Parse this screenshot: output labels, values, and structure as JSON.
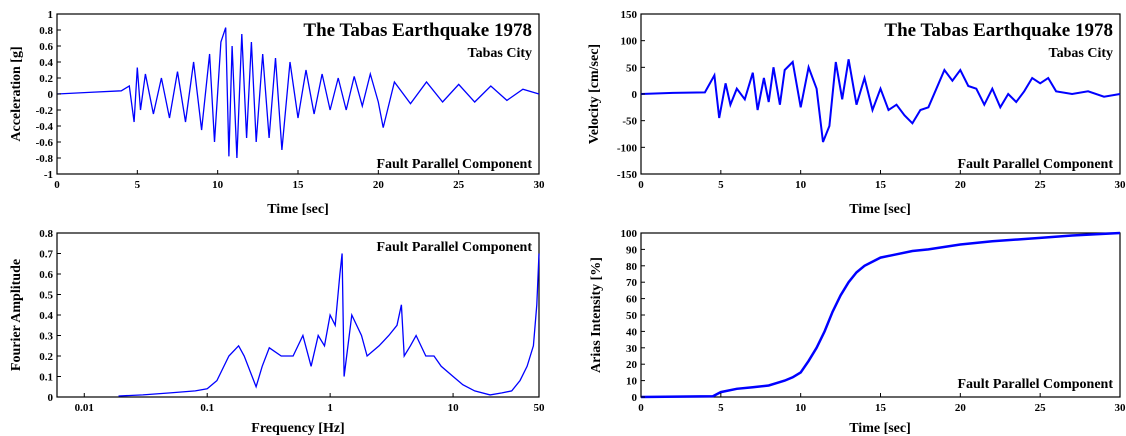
{
  "colors": {
    "trace": "#0000ff",
    "axis": "#000000"
  },
  "chart_data": [
    {
      "id": "acc",
      "type": "line",
      "annotations": [
        "The Tabas Earthquake 1978",
        "Tabas City",
        "Fault Parallel Component"
      ],
      "xlabel": "Time [sec]",
      "ylabel": "Acceleration [g]",
      "xlim": [
        0,
        30
      ],
      "ylim": [
        -1,
        1
      ],
      "xscale": "linear",
      "xticks": [
        0,
        5,
        10,
        15,
        20,
        25,
        30
      ],
      "xtick_labels": [
        "0",
        "5",
        "10",
        "15",
        "20",
        "25",
        "30"
      ],
      "yticks": [
        -1,
        -0.8,
        -0.6,
        -0.4,
        -0.2,
        0,
        0.2,
        0.4,
        0.6,
        0.8,
        1
      ],
      "ytick_labels": [
        "-1",
        "-0.8",
        "-0.6",
        "-0.4",
        "-0.2",
        "0",
        "0.2",
        "0.4",
        "0.6",
        "0.8",
        "1"
      ],
      "grid": false,
      "series": [
        {
          "x": [
            0,
            2,
            4,
            4.5,
            4.8,
            5.0,
            5.2,
            5.5,
            6,
            6.5,
            7,
            7.5,
            8,
            8.5,
            9,
            9.5,
            9.8,
            10.2,
            10.5,
            10.7,
            10.9,
            11.2,
            11.5,
            11.8,
            12.1,
            12.4,
            12.8,
            13.2,
            13.6,
            14,
            14.5,
            15,
            15.5,
            16,
            16.5,
            17,
            17.5,
            18,
            18.5,
            19,
            19.5,
            20,
            20.3,
            21,
            22,
            23,
            24,
            25,
            26,
            27,
            28,
            29,
            30
          ],
          "y": [
            0,
            0.02,
            0.04,
            0.1,
            -0.35,
            0.33,
            -0.2,
            0.25,
            -0.25,
            0.2,
            -0.3,
            0.28,
            -0.35,
            0.4,
            -0.45,
            0.5,
            -0.6,
            0.65,
            0.83,
            -0.78,
            0.6,
            -0.8,
            0.75,
            -0.55,
            0.65,
            -0.6,
            0.5,
            -0.55,
            0.45,
            -0.7,
            0.4,
            -0.3,
            0.3,
            -0.25,
            0.25,
            -0.2,
            0.2,
            -0.2,
            0.22,
            -0.15,
            0.25,
            -0.1,
            -0.42,
            0.15,
            -0.12,
            0.15,
            -0.1,
            0.12,
            -0.1,
            0.1,
            -0.08,
            0.06,
            0
          ]
        }
      ]
    },
    {
      "id": "vel",
      "type": "line",
      "annotations": [
        "The Tabas Earthquake 1978",
        "Tabas City",
        "Fault Parallel Component"
      ],
      "xlabel": "Time [sec]",
      "ylabel": "Velocity [cm/sec]",
      "xlim": [
        0,
        30
      ],
      "ylim": [
        -150,
        150
      ],
      "xscale": "linear",
      "xticks": [
        0,
        5,
        10,
        15,
        20,
        25,
        30
      ],
      "xtick_labels": [
        "0",
        "5",
        "10",
        "15",
        "20",
        "25",
        "30"
      ],
      "yticks": [
        -150,
        -100,
        -50,
        0,
        50,
        100,
        150
      ],
      "ytick_labels": [
        "-150",
        "-100",
        "-50",
        "0",
        "50",
        "100",
        "150"
      ],
      "grid": false,
      "series": [
        {
          "x": [
            0,
            2,
            4,
            4.6,
            4.9,
            5.3,
            5.6,
            6,
            6.5,
            7,
            7.3,
            7.7,
            8,
            8.3,
            8.7,
            9,
            9.5,
            10,
            10.5,
            11,
            11.4,
            11.8,
            12.2,
            12.6,
            13,
            13.5,
            14,
            14.5,
            15,
            15.5,
            16,
            16.5,
            17,
            17.5,
            18,
            18.5,
            19,
            19.5,
            20,
            20.5,
            21,
            21.5,
            22,
            22.5,
            23,
            23.5,
            24,
            24.5,
            25,
            25.5,
            26,
            27,
            28,
            29,
            30
          ],
          "y": [
            0,
            2,
            3,
            35,
            -45,
            20,
            -20,
            10,
            -10,
            40,
            -30,
            30,
            -15,
            50,
            -20,
            45,
            60,
            -25,
            50,
            10,
            -90,
            -60,
            60,
            -10,
            65,
            -20,
            30,
            -30,
            10,
            -30,
            -20,
            -40,
            -55,
            -30,
            -25,
            10,
            45,
            25,
            45,
            15,
            10,
            -20,
            10,
            -25,
            0,
            -15,
            5,
            30,
            20,
            30,
            5,
            0,
            5,
            -5,
            0
          ]
        }
      ]
    },
    {
      "id": "fourier",
      "type": "line",
      "annotations": [
        "Fault Parallel Component"
      ],
      "xlabel": "Frequency [Hz]",
      "ylabel": "Fourier Amplitude",
      "xlim": [
        0.006,
        50
      ],
      "ylim": [
        0,
        0.8
      ],
      "xscale": "log",
      "xticks": [
        0.01,
        0.1,
        1,
        10,
        50
      ],
      "xtick_labels": [
        "0.01",
        "0.1",
        "1",
        "10",
        "50"
      ],
      "yticks": [
        0,
        0.1,
        0.2,
        0.3,
        0.4,
        0.5,
        0.6,
        0.7,
        0.8
      ],
      "ytick_labels": [
        "0",
        "0.1",
        "0.2",
        "0.3",
        "0.4",
        "0.5",
        "0.6",
        "0.7",
        "0.8"
      ],
      "grid": false,
      "series": [
        {
          "x": [
            0.019,
            0.03,
            0.05,
            0.08,
            0.1,
            0.12,
            0.15,
            0.18,
            0.2,
            0.25,
            0.28,
            0.32,
            0.4,
            0.5,
            0.6,
            0.7,
            0.8,
            0.9,
            1.0,
            1.1,
            1.2,
            1.25,
            1.3,
            1.5,
            1.8,
            2.0,
            2.5,
            3.0,
            3.5,
            3.8,
            4.0,
            4.5,
            5,
            6,
            7,
            8,
            10,
            12,
            15,
            20,
            25,
            30,
            35,
            40,
            45,
            48,
            50
          ],
          "y": [
            0.005,
            0.01,
            0.02,
            0.03,
            0.04,
            0.08,
            0.2,
            0.25,
            0.2,
            0.05,
            0.15,
            0.24,
            0.2,
            0.2,
            0.3,
            0.15,
            0.3,
            0.25,
            0.4,
            0.35,
            0.6,
            0.7,
            0.1,
            0.4,
            0.3,
            0.2,
            0.25,
            0.3,
            0.35,
            0.45,
            0.2,
            0.25,
            0.3,
            0.2,
            0.2,
            0.15,
            0.1,
            0.06,
            0.03,
            0.01,
            0.02,
            0.03,
            0.08,
            0.15,
            0.25,
            0.45,
            0.7
          ]
        }
      ]
    },
    {
      "id": "arias",
      "type": "line",
      "annotations": [
        "Fault Parallel Component"
      ],
      "xlabel": "Time [sec]",
      "ylabel": "Arias Intensity [%]",
      "xlim": [
        0,
        30
      ],
      "ylim": [
        0,
        100
      ],
      "xscale": "linear",
      "xticks": [
        0,
        5,
        10,
        15,
        20,
        25,
        30
      ],
      "xtick_labels": [
        "0",
        "5",
        "10",
        "15",
        "20",
        "25",
        "30"
      ],
      "yticks": [
        0,
        10,
        20,
        30,
        40,
        50,
        60,
        70,
        80,
        90,
        100
      ],
      "ytick_labels": [
        "0",
        "10",
        "20",
        "30",
        "40",
        "50",
        "60",
        "70",
        "80",
        "90",
        "100"
      ],
      "grid": false,
      "series": [
        {
          "x": [
            0,
            4.5,
            5,
            6,
            7,
            8,
            9,
            9.5,
            10,
            10.5,
            11,
            11.5,
            12,
            12.5,
            13,
            13.5,
            14,
            15,
            16,
            17,
            18,
            20,
            22,
            25,
            27,
            30
          ],
          "y": [
            0,
            0.5,
            3,
            5,
            6,
            7,
            10,
            12,
            15,
            22,
            30,
            40,
            52,
            62,
            70,
            76,
            80,
            85,
            87,
            89,
            90,
            93,
            95,
            97,
            98.5,
            100
          ]
        }
      ]
    }
  ]
}
